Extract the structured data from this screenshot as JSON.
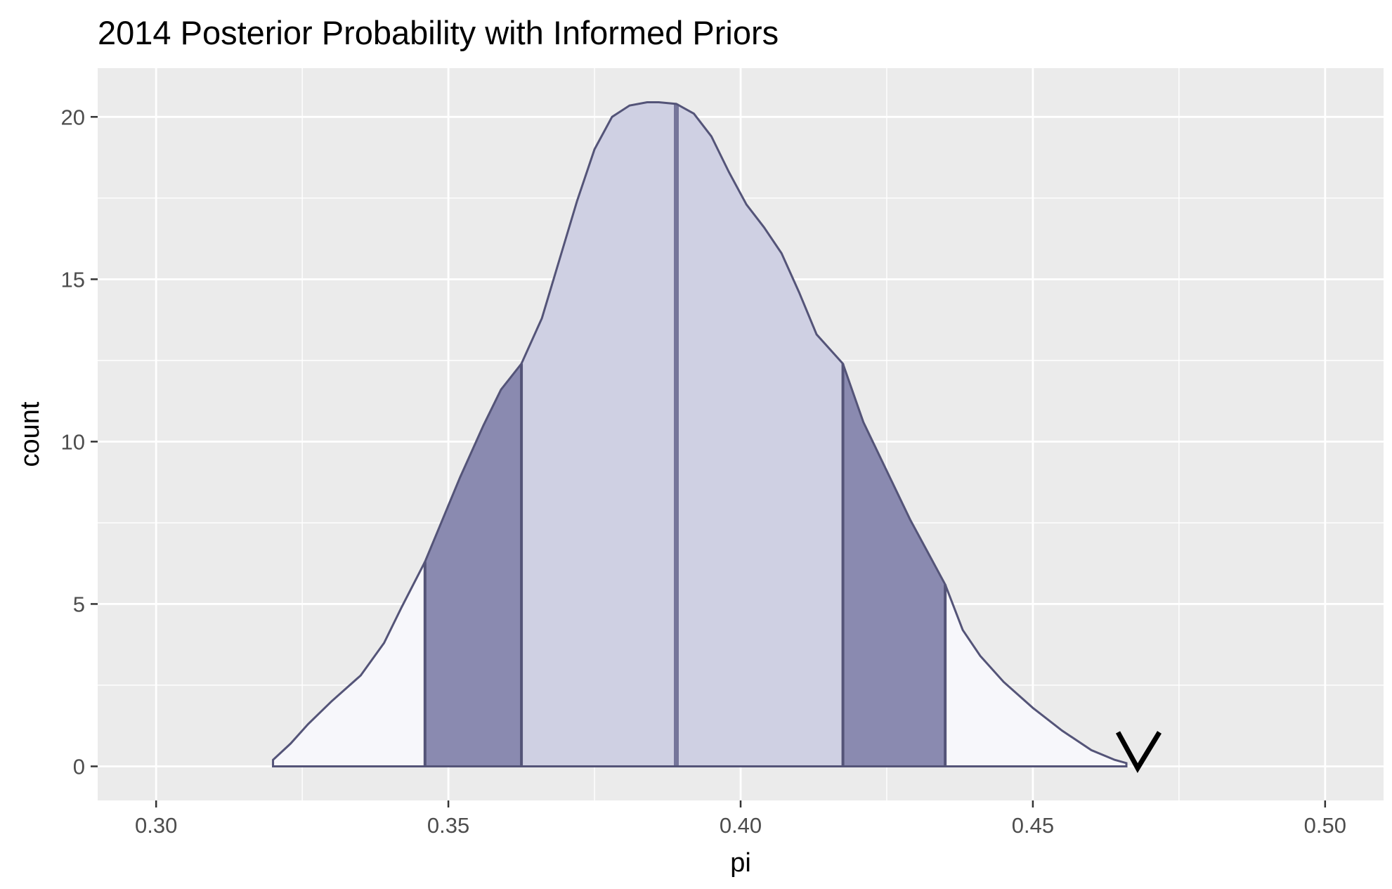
{
  "chart_data": {
    "type": "area",
    "title": "2014 Posterior Probability with Informed Priors",
    "xlabel": "pi",
    "ylabel": "count",
    "xlim": [
      0.29,
      0.51
    ],
    "ylim": [
      -1.05,
      21.5
    ],
    "x_ticks": [
      0.3,
      0.35,
      0.4,
      0.45,
      0.5
    ],
    "x_tick_labels": [
      "0.30",
      "0.35",
      "0.40",
      "0.45",
      "0.50"
    ],
    "y_ticks": [
      0,
      5,
      10,
      15,
      20
    ],
    "y_tick_labels": [
      "0",
      "5",
      "10",
      "15",
      "20"
    ],
    "grid": true,
    "legend": "none",
    "density": {
      "x": [
        0.32,
        0.323,
        0.326,
        0.33,
        0.335,
        0.339,
        0.342,
        0.346,
        0.349,
        0.352,
        0.356,
        0.359,
        0.3625,
        0.366,
        0.369,
        0.372,
        0.375,
        0.378,
        0.381,
        0.384,
        0.386,
        0.389,
        0.392,
        0.395,
        0.398,
        0.401,
        0.404,
        0.407,
        0.41,
        0.413,
        0.4175,
        0.421,
        0.425,
        0.429,
        0.432,
        0.435,
        0.438,
        0.441,
        0.445,
        0.45,
        0.455,
        0.46,
        0.464,
        0.466
      ],
      "y": [
        0.2,
        0.7,
        1.3,
        2.0,
        2.8,
        3.8,
        4.9,
        6.3,
        7.6,
        8.9,
        10.5,
        11.6,
        12.4,
        13.8,
        15.6,
        17.4,
        19.0,
        20.0,
        20.35,
        20.45,
        20.45,
        20.4,
        20.1,
        19.4,
        18.3,
        17.3,
        16.6,
        15.8,
        14.6,
        13.3,
        12.4,
        10.6,
        9.1,
        7.6,
        6.6,
        5.6,
        4.2,
        3.4,
        2.6,
        1.8,
        1.1,
        0.5,
        0.2,
        0.1
      ]
    },
    "quantile_lines": [
      0.346,
      0.3625,
      0.389,
      0.4175,
      0.435
    ],
    "regions": [
      {
        "from": 0.32,
        "to": 0.346,
        "color": "#f7f7fb"
      },
      {
        "from": 0.346,
        "to": 0.3625,
        "color": "#8a8ab0"
      },
      {
        "from": 0.3625,
        "to": 0.4175,
        "color": "#cfd0e3"
      },
      {
        "from": 0.4175,
        "to": 0.435,
        "color": "#8a8ab0"
      },
      {
        "from": 0.435,
        "to": 0.466,
        "color": "#f7f7fb"
      }
    ],
    "colors": {
      "panel_background": "#ebebeb",
      "grid_major": "#ffffff",
      "outline": "#545478",
      "median_line": "#75759a"
    }
  }
}
